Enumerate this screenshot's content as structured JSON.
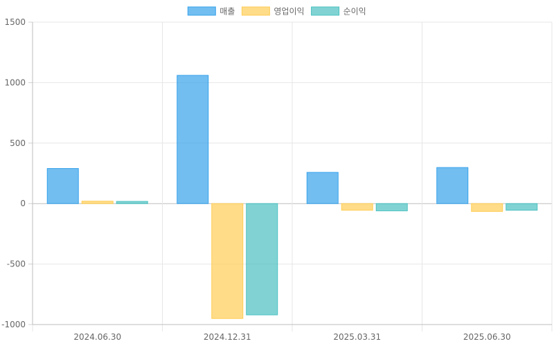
{
  "chart_data": {
    "type": "bar",
    "categories": [
      "2024.06.30",
      "2024.12.31",
      "2025.03.31",
      "2025.06.30"
    ],
    "series": [
      {
        "name": "매출",
        "values": [
          290,
          1060,
          258,
          298
        ],
        "color": "#36A2EB"
      },
      {
        "name": "영업이익",
        "values": [
          20,
          -950,
          -55,
          -65
        ],
        "color": "#FFCD56"
      },
      {
        "name": "순이익",
        "values": [
          18,
          -920,
          -60,
          -55
        ],
        "color": "#4BC0C0"
      }
    ],
    "ylim": [
      -1000,
      1500
    ],
    "yticks": [
      -1000,
      -500,
      0,
      500,
      1000,
      1500
    ],
    "legend_position": "top",
    "grid": true
  }
}
